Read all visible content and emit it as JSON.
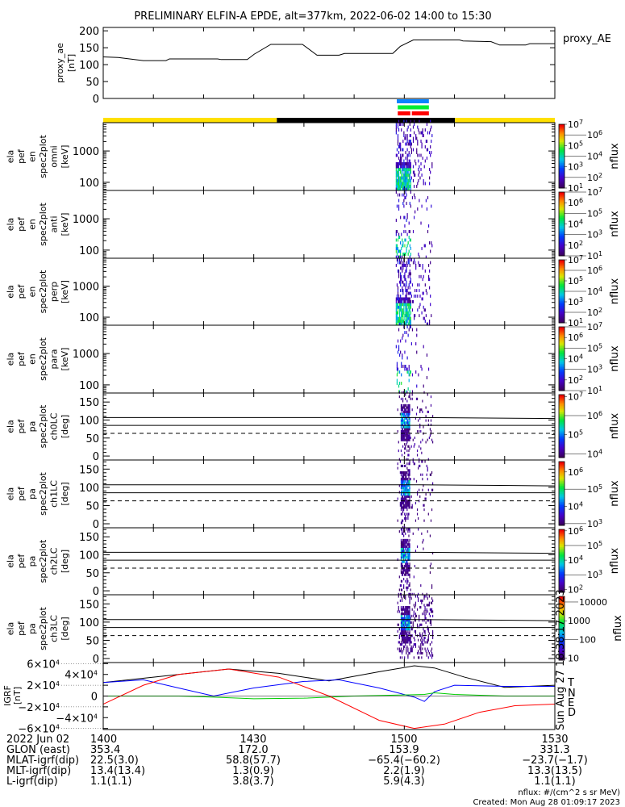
{
  "chart_data": {
    "type": "line+spectrogram",
    "title": "PRELIMINARY ELFIN-A EPDE, alt=377km, 2022-06-02 14:00 to 15:30",
    "time_axis": {
      "unit": "minutes after 14:00 UT",
      "range": [
        0,
        90
      ]
    },
    "proxy_ae": {
      "type": "line",
      "ylabel": [
        "proxy_ae",
        "[nT]"
      ],
      "legend": "proxy_AE",
      "ylim": [
        0,
        210
      ],
      "yticks": [
        "0",
        "50",
        "100",
        "150",
        "200"
      ],
      "t": [
        0,
        3,
        8,
        12.5,
        13.2,
        22.8,
        23.5,
        28.7,
        30.1,
        33.4,
        39.7,
        42.6,
        47,
        48.1,
        57.7,
        59.2,
        61.8,
        71,
        71.7,
        77.3,
        79,
        84.2,
        85,
        90
      ],
      "values": [
        123,
        121,
        112,
        112,
        117,
        117,
        115,
        115,
        131,
        160,
        160,
        128,
        128,
        133,
        133,
        154,
        173,
        173,
        170,
        168,
        158,
        158,
        162,
        162
      ]
    },
    "coverage_bars": [
      {
        "name": "blue",
        "color": "#0a84ff",
        "segments": [
          [
            58.5,
            64.9
          ]
        ]
      },
      {
        "name": "green",
        "color": "#00ee33",
        "segments": [
          [
            58.7,
            64.9
          ]
        ]
      },
      {
        "name": "red",
        "color": "#ff0000",
        "segments": [
          [
            58.7,
            61.2
          ],
          [
            61.5,
            64.9
          ]
        ]
      }
    ],
    "orbit_bar": {
      "segments": [
        {
          "range": [
            0,
            34.6
          ],
          "color": "#ffe000"
        },
        {
          "range": [
            34.6,
            70.1
          ],
          "color": "#000000"
        },
        {
          "range": [
            70.1,
            90
          ],
          "color": "#ffe000"
        }
      ]
    },
    "energy_panels": [
      {
        "ylabel": [
          "ela",
          "pef",
          "en",
          "spec2plot",
          "omni",
          "[keV]"
        ],
        "ylim": [
          55,
          8000
        ],
        "yticks": [
          "100",
          "1000"
        ],
        "active_range": [
          58.3,
          65.5
        ],
        "density": 1.0
      },
      {
        "ylabel": [
          "ela",
          "pef",
          "en",
          "spec2plot",
          "anti",
          "[keV]"
        ],
        "ylim": [
          55,
          8000
        ],
        "yticks": [
          "100",
          "1000"
        ],
        "active_range": [
          58.3,
          65.5
        ],
        "density": 0.35
      },
      {
        "ylabel": [
          "ela",
          "pef",
          "en",
          "spec2plot",
          "perp",
          "[keV]"
        ],
        "ylim": [
          55,
          8000
        ],
        "yticks": [
          "100",
          "1000"
        ],
        "active_range": [
          58.3,
          65.5
        ],
        "density": 0.9
      },
      {
        "ylabel": [
          "ela",
          "pef",
          "en",
          "spec2plot",
          "para",
          "[keV]"
        ],
        "ylim": [
          55,
          8000
        ],
        "yticks": [
          "100",
          "1000"
        ],
        "active_range": [
          58.3,
          65.5
        ],
        "density": 0.25
      }
    ],
    "pa_panels": [
      {
        "ylabel": [
          "ela",
          "pef",
          "pa",
          "spec2plot",
          "ch0LC",
          "[deg]"
        ],
        "ylim": [
          -11,
          175
        ],
        "yticks": [
          "0",
          "50",
          "100",
          "150"
        ]
      },
      {
        "ylabel": [
          "ela",
          "pef",
          "pa",
          "spec2plot",
          "ch1LC",
          "[deg]"
        ],
        "ylim": [
          -11,
          175
        ],
        "yticks": [
          "0",
          "50",
          "100",
          "150"
        ]
      },
      {
        "ylabel": [
          "ela",
          "pef",
          "pa",
          "spec2plot",
          "ch2LC",
          "[deg]"
        ],
        "ylim": [
          -11,
          175
        ],
        "yticks": [
          "0",
          "50",
          "100",
          "150"
        ]
      },
      {
        "ylabel": [
          "ela",
          "pef",
          "pa",
          "spec2plot",
          "ch3LC",
          "[deg]"
        ],
        "ylim": [
          -11,
          175
        ],
        "yticks": [
          "50",
          "100",
          "150",
          "0"
        ]
      }
    ],
    "pa_reference_lines": {
      "loss_cone_upper_deg": [
        107,
        104
      ],
      "loss_cone_lower_deg": 85,
      "dashed_deg": 63
    },
    "colorbars": [
      {
        "label": "nflux",
        "log_range": [
          1,
          7
        ],
        "ticks": [
          {
            "b": "10",
            "e": "7"
          },
          {
            "b": "10",
            "e": "6"
          },
          {
            "b": "10",
            "e": "5"
          },
          {
            "b": "10",
            "e": "4"
          },
          {
            "b": "10",
            "e": "3"
          },
          {
            "b": "10",
            "e": "2"
          },
          {
            "b": "10",
            "e": "1"
          }
        ]
      },
      {
        "label": "nflux",
        "log_range": [
          1,
          7
        ],
        "ticks": [
          {
            "b": "10",
            "e": "7"
          },
          {
            "b": "10",
            "e": "6"
          },
          {
            "b": "10",
            "e": "5"
          },
          {
            "b": "10",
            "e": "4"
          },
          {
            "b": "10",
            "e": "3"
          },
          {
            "b": "10",
            "e": "2"
          },
          {
            "b": "10",
            "e": "1"
          }
        ]
      },
      {
        "label": "nflux",
        "log_range": [
          1,
          7
        ],
        "ticks": [
          {
            "b": "10",
            "e": "7"
          },
          {
            "b": "10",
            "e": "6"
          },
          {
            "b": "10",
            "e": "5"
          },
          {
            "b": "10",
            "e": "4"
          },
          {
            "b": "10",
            "e": "3"
          },
          {
            "b": "10",
            "e": "2"
          },
          {
            "b": "10",
            "e": "1"
          }
        ]
      },
      {
        "label": "nflux",
        "log_range": [
          1,
          7
        ],
        "ticks": [
          {
            "b": "10",
            "e": "7"
          },
          {
            "b": "10",
            "e": "6"
          },
          {
            "b": "10",
            "e": "5"
          },
          {
            "b": "10",
            "e": "4"
          },
          {
            "b": "10",
            "e": "3"
          },
          {
            "b": "10",
            "e": "2"
          },
          {
            "b": "10",
            "e": "1"
          }
        ]
      },
      {
        "label": "nflux",
        "log_range": [
          3.8,
          7.1
        ],
        "ticks": [
          {
            "b": "10",
            "e": "7"
          },
          {
            "b": "10",
            "e": "6"
          },
          {
            "b": "10",
            "e": "5"
          },
          {
            "b": "10",
            "e": "4"
          }
        ]
      },
      {
        "label": "nflux",
        "log_range": [
          2.9,
          6.6
        ],
        "ticks": [
          {
            "b": "10",
            "e": "6"
          },
          {
            "b": "10",
            "e": "5"
          },
          {
            "b": "10",
            "e": "4"
          },
          {
            "b": "10",
            "e": "3"
          }
        ]
      },
      {
        "label": "nflux",
        "log_range": [
          1.8,
          6.1
        ],
        "ticks": [
          {
            "b": "10",
            "e": "6"
          },
          {
            "b": "10",
            "e": "5"
          },
          {
            "b": "10",
            "e": "4"
          },
          {
            "b": "10",
            "e": "3"
          },
          {
            "b": "10",
            "e": "2"
          }
        ]
      },
      {
        "label": "nflux",
        "log_range": [
          0.9,
          4.3
        ],
        "ticks": [
          {
            "b": "10000",
            "e": ""
          },
          {
            "b": "1000",
            "e": ""
          },
          {
            "b": "100",
            "e": ""
          },
          {
            "b": "10",
            "e": ""
          }
        ]
      }
    ],
    "igrf": {
      "type": "line",
      "ylabel": [
        "IGRF",
        "[nT]"
      ],
      "ylim": [
        -62000,
        62000
      ],
      "yticks": [
        {
          "b": "6×10",
          "e": "4"
        },
        {
          "b": "4×10",
          "e": "4"
        },
        {
          "b": "2×10",
          "e": "4"
        },
        {
          "b": "0",
          "e": ""
        },
        {
          "b": "−2×10",
          "e": "4"
        },
        {
          "b": "−4×10",
          "e": "4"
        },
        {
          "b": "−6×10",
          "e": "4"
        }
      ],
      "series": [
        {
          "name": "T",
          "color": "#000000",
          "t": [
            0,
            10,
            25,
            35,
            45,
            55,
            62,
            66,
            72,
            80,
            90
          ],
          "values": [
            25000,
            35000,
            50000,
            42000,
            28000,
            45000,
            56000,
            52000,
            35000,
            16000,
            20000
          ]
        },
        {
          "name": "N",
          "color": "#0000ff",
          "t": [
            0,
            8,
            15,
            22,
            30,
            40,
            47,
            55,
            62,
            64,
            66,
            70,
            80,
            90
          ],
          "values": [
            25000,
            30000,
            15000,
            0,
            15000,
            27000,
            30000,
            15000,
            -2000,
            -10000,
            8000,
            20000,
            18000,
            18000
          ]
        },
        {
          "name": "E",
          "color": "#00cc00",
          "t": [
            0,
            15,
            22,
            30,
            40,
            50,
            60,
            64,
            66,
            70,
            80,
            90
          ],
          "values": [
            0,
            0,
            -2000,
            -5000,
            -4000,
            0,
            2000,
            3000,
            6000,
            3000,
            0,
            0
          ]
        },
        {
          "name": "D",
          "color": "#ff0000",
          "t": [
            0,
            8,
            15,
            25,
            35,
            45,
            55,
            62,
            68,
            75,
            82,
            90
          ],
          "values": [
            -15000,
            20000,
            40000,
            50000,
            35000,
            0,
            -45000,
            -60000,
            -52000,
            -30000,
            -18000,
            -15000
          ]
        }
      ]
    },
    "ephemeris": {
      "header": "2022 Jun 02",
      "times": [
        "1400",
        "1430",
        "1500",
        "1530"
      ],
      "rows": [
        {
          "label": "GLON (east)",
          "values": [
            "353.4",
            "172.0",
            "153.9",
            "331.3"
          ]
        },
        {
          "label": "MLAT-igrf(dip)",
          "values": [
            "22.5(3.0)",
            "58.8(57.7)",
            "−65.4(−60.2)",
            "−23.7(−1.7)"
          ]
        },
        {
          "label": "MLT-igrf(dip)",
          "values": [
            "13.4(13.4)",
            "1.3(0.9)",
            "2.2(1.9)",
            "13.3(13.5)"
          ]
        },
        {
          "label": "L-igrf(dip)",
          "values": [
            "1.1(1.1)",
            "3.8(3.7)",
            "5.9(4.3)",
            "1.1(1.1)"
          ]
        }
      ]
    },
    "footer": {
      "units": "nflux: #/(cm^2 s sr MeV)",
      "created": "Created: Mon Aug 28 01:09:17 2023",
      "side_stamp": "Sun Aug 27 18:38:17 2023"
    }
  }
}
